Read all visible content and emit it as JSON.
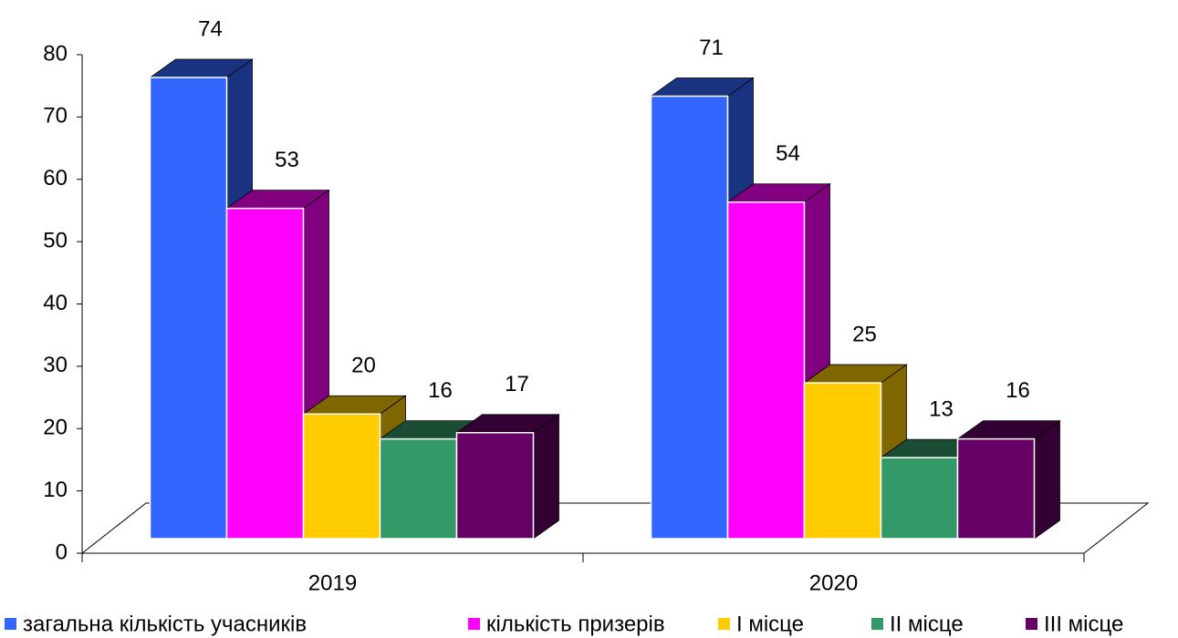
{
  "chart_data": {
    "type": "bar3d",
    "categories": [
      "2019",
      "2020"
    ],
    "series": [
      {
        "name": "загальна кількість учасників",
        "color": "#3366ff",
        "side": "#1a3380",
        "values": [
          74,
          71
        ]
      },
      {
        "name": "кількість призерів",
        "color": "#ff00ff",
        "side": "#800080",
        "values": [
          53,
          54
        ]
      },
      {
        "name": "І місце",
        "color": "#ffcc00",
        "side": "#806600",
        "values": [
          20,
          25
        ]
      },
      {
        "name": "ІІ місце",
        "color": "#339966",
        "side": "#1a4d33",
        "values": [
          16,
          13
        ]
      },
      {
        "name": "ІІІ місце",
        "color": "#660066",
        "side": "#330033",
        "values": [
          17,
          16
        ]
      }
    ],
    "ylim": [
      0,
      80
    ],
    "yticks": [
      0,
      10,
      20,
      30,
      40,
      50,
      60,
      70,
      80
    ],
    "legend": "bottom"
  }
}
